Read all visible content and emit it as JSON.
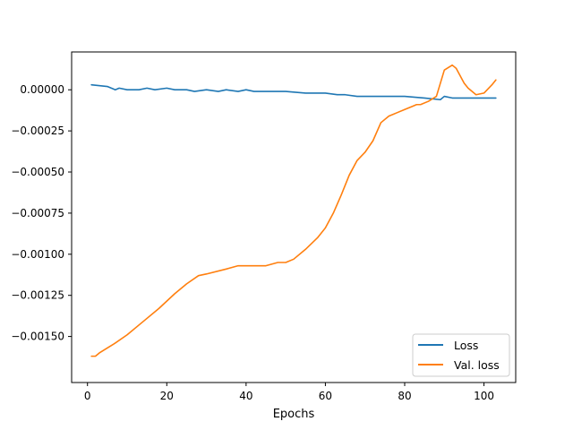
{
  "chart_data": {
    "type": "line",
    "title": "",
    "xlabel": "Epochs",
    "ylabel": "",
    "xlim": [
      -4,
      108
    ],
    "ylim": [
      -0.00178,
      0.00023
    ],
    "xticks": [
      0,
      20,
      40,
      60,
      80,
      100
    ],
    "xtick_labels": [
      "0",
      "20",
      "40",
      "60",
      "80",
      "100"
    ],
    "yticks": [
      0.0,
      -0.00025,
      -0.0005,
      -0.00075,
      -0.001,
      -0.00125,
      -0.0015
    ],
    "ytick_labels": [
      "0.00000",
      "−0.00025",
      "−0.00050",
      "−0.00075",
      "−0.00100",
      "−0.00125",
      "−0.00150"
    ],
    "grid": false,
    "legend_position": "lower-right",
    "series": [
      {
        "name": "Loss",
        "color": "#1f77b4",
        "x": [
          1,
          5,
          7,
          8,
          10,
          13,
          15,
          17,
          20,
          22,
          25,
          27,
          30,
          33,
          35,
          38,
          40,
          42,
          45,
          48,
          50,
          55,
          60,
          63,
          65,
          68,
          70,
          75,
          80,
          85,
          89,
          90,
          92,
          95,
          100,
          103
        ],
        "y": [
          3e-05,
          2e-05,
          0.0,
          1e-05,
          0.0,
          0.0,
          1e-05,
          0.0,
          1e-05,
          0.0,
          0.0,
          -1e-05,
          0.0,
          -1e-05,
          0.0,
          -1e-05,
          0.0,
          -1e-05,
          -1e-05,
          -1e-05,
          -1e-05,
          -2e-05,
          -2e-05,
          -3e-05,
          -3e-05,
          -4e-05,
          -4e-05,
          -4e-05,
          -4e-05,
          -5e-05,
          -6e-05,
          -4e-05,
          -5e-05,
          -5e-05,
          -5e-05,
          -5e-05
        ]
      },
      {
        "name": "Val. loss",
        "color": "#ff7f0e",
        "x": [
          1,
          2,
          3,
          5,
          7,
          10,
          14,
          18,
          22,
          25,
          28,
          30,
          35,
          38,
          40,
          45,
          48,
          50,
          52,
          55,
          58,
          60,
          62,
          64,
          66,
          68,
          70,
          72,
          74,
          76,
          78,
          80,
          82,
          83,
          84,
          86,
          88,
          90,
          92,
          93,
          95,
          96,
          98,
          100,
          102,
          103
        ],
        "y": [
          -0.00162,
          -0.00162,
          -0.0016,
          -0.00157,
          -0.00154,
          -0.00149,
          -0.00141,
          -0.00133,
          -0.00124,
          -0.00118,
          -0.00113,
          -0.00112,
          -0.00109,
          -0.00107,
          -0.00107,
          -0.00107,
          -0.00105,
          -0.00105,
          -0.00103,
          -0.00097,
          -0.0009,
          -0.00084,
          -0.00075,
          -0.00064,
          -0.00052,
          -0.00043,
          -0.00038,
          -0.00031,
          -0.0002,
          -0.00016,
          -0.00014,
          -0.00012,
          -0.0001,
          -9e-05,
          -9e-05,
          -7e-05,
          -4e-05,
          0.00012,
          0.00015,
          0.00013,
          4e-05,
          1e-05,
          -3e-05,
          -2e-05,
          3e-05,
          6e-05
        ]
      }
    ]
  }
}
